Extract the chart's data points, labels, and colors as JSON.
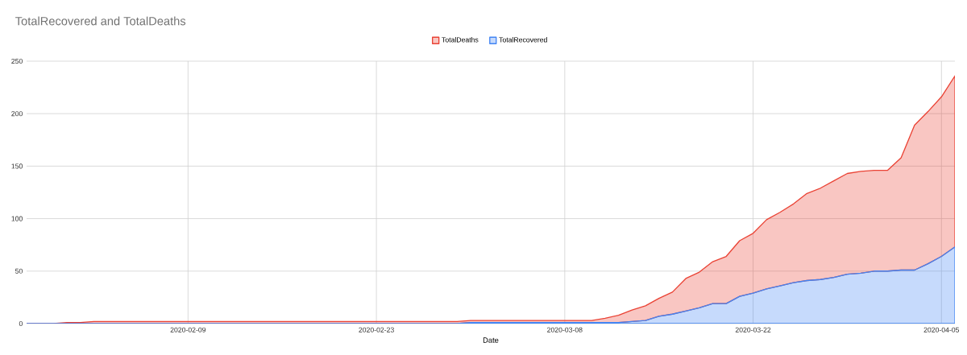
{
  "chart_data": {
    "type": "area",
    "title": "TotalRecovered and TotalDeaths",
    "xlabel": "Date",
    "stacked": true,
    "x": [
      "2020-01-28",
      "2020-01-30",
      "2020-01-31",
      "2020-02-01",
      "2020-02-02",
      "2020-02-29",
      "2020-03-01",
      "2020-03-10",
      "2020-03-11",
      "2020-03-12",
      "2020-03-13",
      "2020-03-14",
      "2020-03-15",
      "2020-03-16",
      "2020-03-17",
      "2020-03-18",
      "2020-03-19",
      "2020-03-20",
      "2020-03-21",
      "2020-03-22",
      "2020-03-23",
      "2020-03-24",
      "2020-03-25",
      "2020-03-26",
      "2020-03-27",
      "2020-03-28",
      "2020-03-29",
      "2020-03-30",
      "2020-03-31",
      "2020-04-01",
      "2020-04-02",
      "2020-04-03",
      "2020-04-04",
      "2020-04-05",
      "2020-04-06"
    ],
    "series": [
      {
        "name": "TotalRecovered",
        "color": "#4285f4",
        "values": [
          0,
          0,
          0,
          0,
          0,
          0,
          1,
          1,
          1,
          1,
          2,
          3,
          7,
          9,
          12,
          15,
          19,
          19,
          26,
          29,
          33,
          36,
          39,
          41,
          42,
          44,
          47,
          48,
          50,
          50,
          51,
          51,
          57,
          64,
          73
        ]
      },
      {
        "name": "TotalDeaths",
        "color": "#ea4335",
        "values": [
          0,
          0,
          1,
          1,
          2,
          2,
          2,
          2,
          4,
          7,
          11,
          14,
          17,
          21,
          31,
          34,
          40,
          45,
          53,
          57,
          66,
          70,
          75,
          83,
          87,
          92,
          96,
          97,
          96,
          96,
          107,
          138,
          145,
          152,
          163
        ]
      }
    ],
    "xlim": [
      "2020-01-28",
      "2020-04-06"
    ],
    "xticks": [
      "2020-02-09",
      "2020-02-23",
      "2020-03-08",
      "2020-03-22",
      "2020-04-05"
    ],
    "ylim": [
      0,
      250
    ],
    "yticks": [
      0,
      50,
      100,
      150,
      200,
      250
    ],
    "grid": true,
    "legend": "top"
  }
}
